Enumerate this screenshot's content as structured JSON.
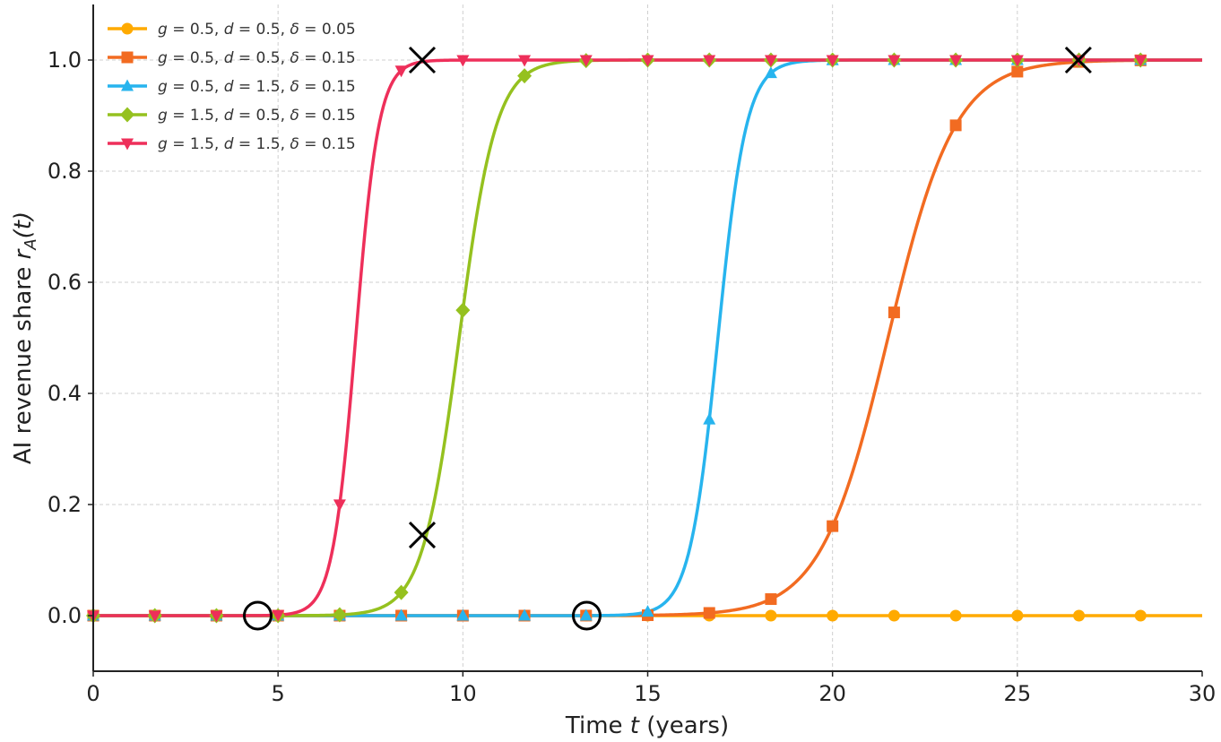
{
  "chart_data": {
    "type": "line",
    "title": "",
    "xlabel": "Time",
    "xlabel_var": "t",
    "xlabel_suffix": "(years)",
    "ylabel": "AI revenue share",
    "ylabel_var": "r",
    "ylabel_sub": "A",
    "ylabel_arg": "(t)",
    "xlim": [
      0,
      30
    ],
    "ylim": [
      -0.1,
      1.1
    ],
    "xticks": [
      "0",
      "5",
      "10",
      "15",
      "20",
      "25",
      "30"
    ],
    "yticks": [
      "0.0",
      "0.2",
      "0.4",
      "0.6",
      "0.8",
      "1.0"
    ],
    "grid": true,
    "legend_position": "top-left",
    "series": [
      {
        "name": "g = 0.5, d = 0.5, δ = 0.05",
        "color": "#ffaa00",
        "marker": "circle",
        "curve": "flat",
        "midpoint": null,
        "rate": null
      },
      {
        "name": "g = 0.5, d = 0.5, δ = 0.15",
        "color": "#f26b21",
        "marker": "square",
        "curve": "logistic",
        "midpoint": 21.5,
        "rate": 1.1
      },
      {
        "name": "g = 0.5, d = 1.5, δ = 0.15",
        "color": "#27b4ee",
        "marker": "triangle-up",
        "curve": "logistic",
        "midpoint": 16.9,
        "rate": 2.6
      },
      {
        "name": "g = 1.5, d = 0.5, δ = 0.15",
        "color": "#95c11f",
        "marker": "diamond",
        "curve": "logistic",
        "midpoint": 9.9,
        "rate": 2.0
      },
      {
        "name": "g = 1.5, d = 1.5, δ = 0.15",
        "color": "#ee2f5a",
        "marker": "triangle-down",
        "curve": "logistic",
        "midpoint": 7.1,
        "rate": 3.2
      }
    ],
    "marker_x": [
      0,
      1.667,
      3.333,
      5,
      6.667,
      8.333,
      10,
      11.667,
      13.333,
      15,
      16.667,
      18.333,
      20,
      21.667,
      23.333,
      25,
      26.667,
      28.333
    ],
    "annotations": {
      "circles": [
        [
          4.45,
          0.0
        ],
        [
          13.35,
          0.0
        ]
      ],
      "crosses": [
        [
          8.9,
          1.0
        ],
        [
          8.9,
          0.145
        ],
        [
          26.65,
          1.0
        ]
      ]
    }
  }
}
